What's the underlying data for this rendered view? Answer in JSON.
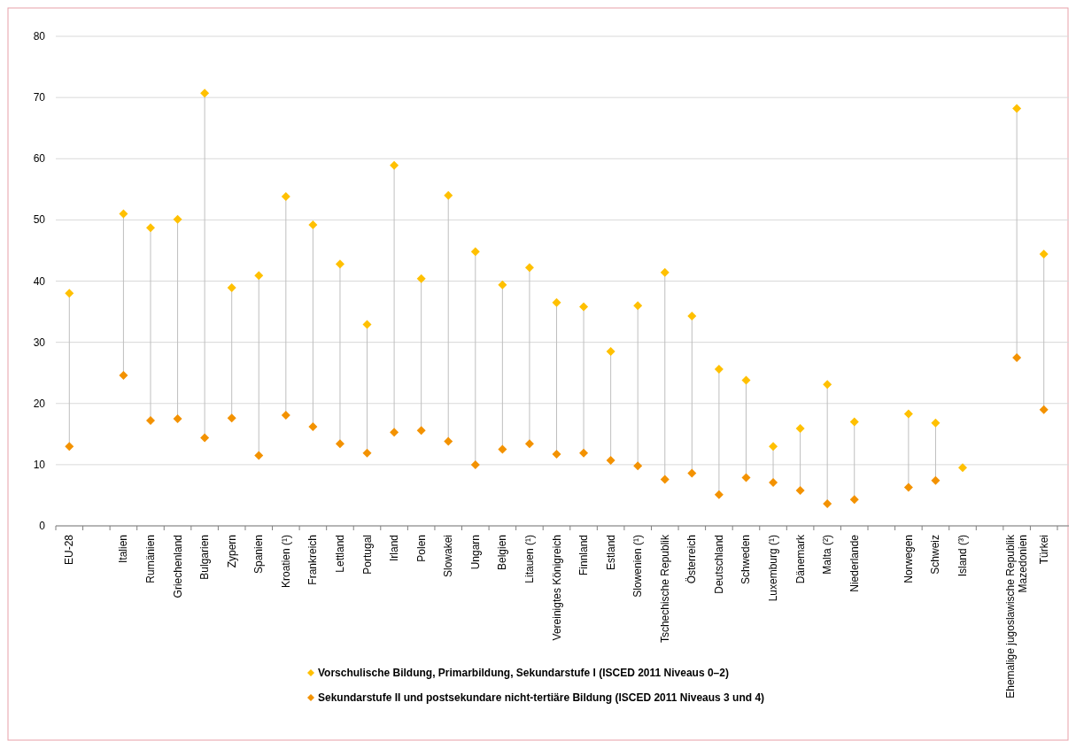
{
  "chart_data": {
    "type": "scatter",
    "categories": [
      "EU-28",
      null,
      "Italien",
      "Rumänien",
      "Griechenland",
      "Bulgarien",
      "Zypern",
      "Spanien",
      "Kroatien (¹)",
      "Frankreich",
      "Lettland",
      "Portugal",
      "Irland",
      "Polen",
      "Slowakei",
      "Ungarn",
      "Belgien",
      "Litauen (¹)",
      "Vereinigtes Königreich",
      "Finnland",
      "Estland",
      "Slowenien (¹)",
      "Tschechische Republik",
      "Österreich",
      "Deutschland",
      "Schweden",
      "Luxemburg (¹)",
      "Dänemark",
      "Malta (²)",
      "Niederlande",
      null,
      "Norwegen",
      "Schweiz",
      "Island (³)",
      null,
      "Ehemalige jugoslawische Republik Mazedonien",
      "Türkei"
    ],
    "series": [
      {
        "name": "Vorschulische Bildung, Primarbildung, Sekundarstufe I (ISCED 2011 Niveaus 0–2)",
        "color": "#ffc000",
        "values": [
          38.0,
          null,
          51.0,
          48.7,
          50.1,
          70.7,
          38.9,
          40.9,
          53.8,
          49.2,
          42.8,
          32.9,
          58.9,
          40.4,
          54.0,
          44.8,
          39.4,
          42.2,
          36.5,
          35.8,
          28.5,
          36.0,
          41.4,
          34.3,
          25.6,
          23.8,
          13.0,
          15.9,
          23.1,
          17.0,
          null,
          18.3,
          16.8,
          9.5,
          null,
          68.2,
          44.4
        ]
      },
      {
        "name": "Sekundarstufe II und postsekundare nicht-tertiäre Bildung (ISCED 2011 Niveaus 3 und 4)",
        "color": "#f39200",
        "values": [
          13.0,
          null,
          24.6,
          17.2,
          17.5,
          14.4,
          17.6,
          11.5,
          18.1,
          16.2,
          13.4,
          11.9,
          15.3,
          15.6,
          13.8,
          10.0,
          12.5,
          13.4,
          11.7,
          11.9,
          10.7,
          9.8,
          7.6,
          8.6,
          5.1,
          7.9,
          7.1,
          5.8,
          3.6,
          4.3,
          null,
          6.3,
          7.4,
          null,
          null,
          27.5,
          19.0
        ]
      }
    ],
    "ylim": [
      0,
      80
    ],
    "yticks": [
      0,
      10,
      20,
      30,
      40,
      50,
      60,
      70,
      80
    ],
    "grid": "y",
    "legend": "bottom",
    "marker": "diamond"
  }
}
